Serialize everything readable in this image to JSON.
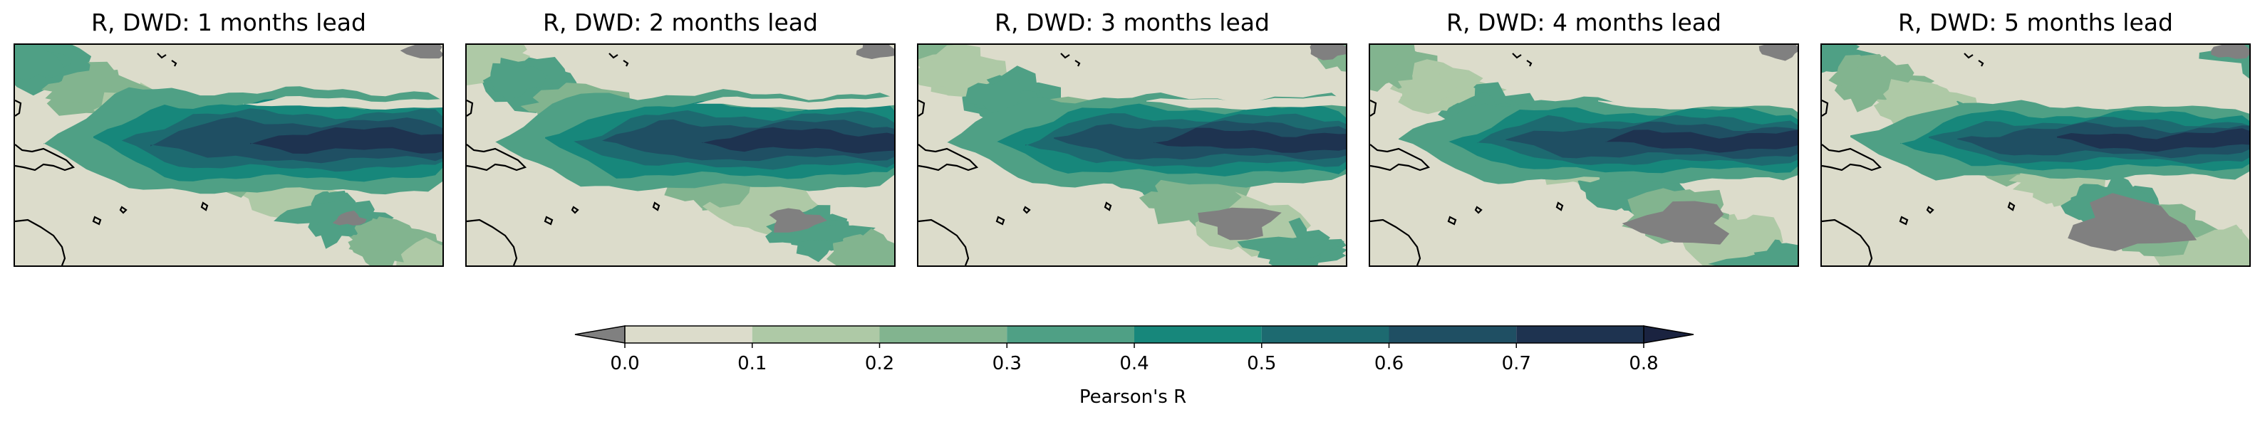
{
  "panels": [
    {
      "title": "R, DWD: 1 months lead",
      "lead": 1
    },
    {
      "title": "R, DWD: 2 months lead",
      "lead": 2
    },
    {
      "title": "R, DWD: 3 months lead",
      "lead": 3
    },
    {
      "title": "R, DWD: 4 months lead",
      "lead": 4
    },
    {
      "title": "R, DWD: 5 months lead",
      "lead": 5
    }
  ],
  "colorbar": {
    "label": "Pearson's R",
    "ticks": [
      "0.0",
      "0.1",
      "0.2",
      "0.3",
      "0.4",
      "0.5",
      "0.6",
      "0.7",
      "0.8"
    ],
    "levels": [
      0.0,
      0.1,
      0.2,
      0.3,
      0.4,
      0.5,
      0.6,
      0.7,
      0.8
    ],
    "under_color": "#808080",
    "over_color": "#1a2340",
    "colors": [
      "#dcdccb",
      "#aec9a6",
      "#82b48f",
      "#4fa085",
      "#17877b",
      "#1d6a70",
      "#1f4f63",
      "#1e3350"
    ],
    "extend": "both"
  },
  "colors": {
    "land_outline": "#000000",
    "negative_fill": "#808080"
  }
}
